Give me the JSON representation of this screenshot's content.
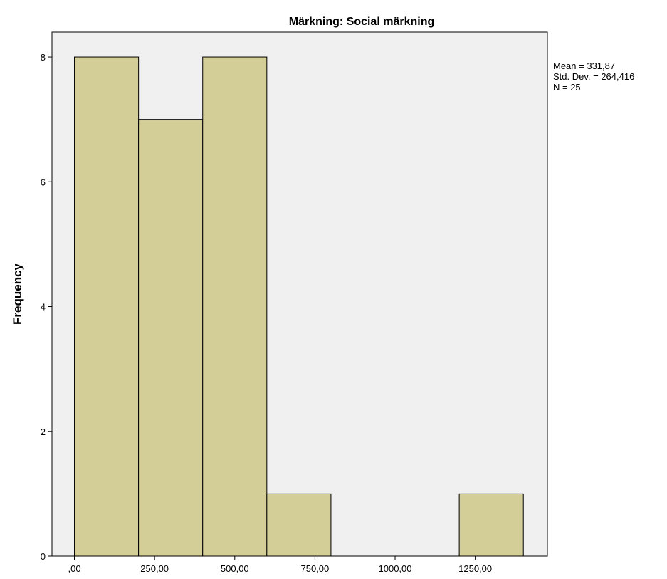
{
  "chart_data": {
    "type": "bar",
    "title": "Märkning: Social märkning",
    "xlabel": "",
    "ylabel": "Frequency",
    "bins": [
      {
        "start": 0,
        "end": 200,
        "count": 8
      },
      {
        "start": 200,
        "end": 400,
        "count": 7
      },
      {
        "start": 400,
        "end": 600,
        "count": 8
      },
      {
        "start": 600,
        "end": 800,
        "count": 1
      },
      {
        "start": 800,
        "end": 1000,
        "count": 0
      },
      {
        "start": 1000,
        "end": 1200,
        "count": 0
      },
      {
        "start": 1200,
        "end": 1400,
        "count": 1
      }
    ],
    "xlim": [
      -70,
      1475
    ],
    "ylim": [
      0,
      8.4
    ],
    "x_ticks": [
      {
        "value": 0,
        "label": ",00"
      },
      {
        "value": 250,
        "label": "250,00"
      },
      {
        "value": 500,
        "label": "500,00"
      },
      {
        "value": 750,
        "label": "750,00"
      },
      {
        "value": 1000,
        "label": "1000,00"
      },
      {
        "value": 1250,
        "label": "1250,00"
      }
    ],
    "y_ticks": [
      {
        "value": 0,
        "label": "0"
      },
      {
        "value": 2,
        "label": "2"
      },
      {
        "value": 4,
        "label": "4"
      },
      {
        "value": 6,
        "label": "6"
      },
      {
        "value": 8,
        "label": "8"
      }
    ],
    "grid": false,
    "stats": {
      "mean": "Mean = 331,87",
      "std_dev": "Std. Dev. = 264,416",
      "n": "N = 25"
    },
    "colors": {
      "bar_fill": "#d3ce98",
      "bar_stroke": "#000000",
      "plot_background": "#f0f0f0"
    }
  }
}
